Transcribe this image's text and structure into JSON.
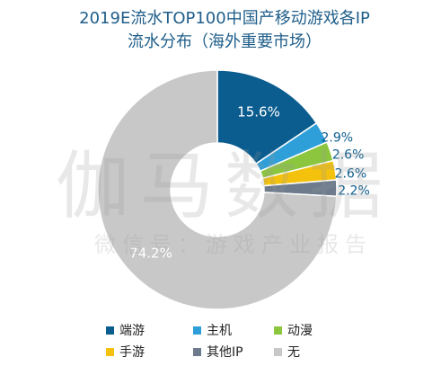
{
  "title_line1": "2019E流水TOP100中国产移动游戏各IP",
  "title_line2": "流水分布（海外重要市场）",
  "watermark": {
    "main": "伽马数据",
    "sub": "微信号：游戏产业报告"
  },
  "chart_data": {
    "type": "pie",
    "title": "2019E流水TOP100中国产移动游戏各IP流水分布（海外重要市场）",
    "categories": [
      "端游",
      "主机",
      "动漫",
      "手游",
      "其他IP",
      "无"
    ],
    "values": [
      15.6,
      2.9,
      2.6,
      2.6,
      2.2,
      74.2
    ],
    "labels": [
      "15.6%",
      "2.9%",
      "2.6%",
      "2.6%",
      "2.2%",
      "74.2%"
    ],
    "colors": [
      "#0b5d8f",
      "#2e9fd8",
      "#8cc63f",
      "#f4c20d",
      "#6d7b8d",
      "#c8c8c8"
    ],
    "donut": true,
    "legend_position": "bottom"
  }
}
